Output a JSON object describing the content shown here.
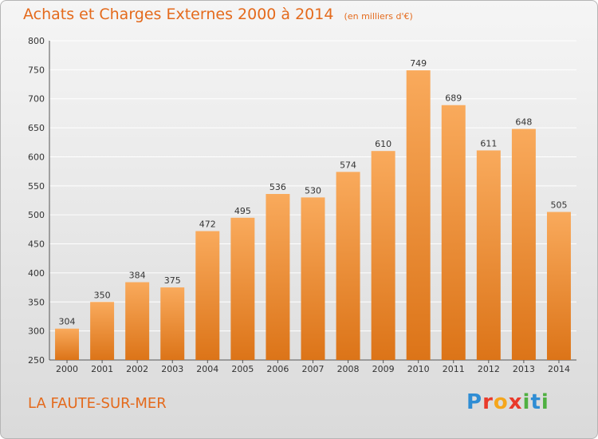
{
  "header": {
    "title": "Achats et Charges Externes 2000 à 2014",
    "unit": "(en milliers d'€)"
  },
  "footer": {
    "commune": "LA FAUTE-SUR-MER",
    "brand": [
      "P",
      "r",
      "o",
      "x",
      "i",
      "t",
      "i"
    ]
  },
  "colors": {
    "accent": "#e46a1c",
    "bar_top": "#f9aa5c",
    "bar_bottom": "#dc7418",
    "grid": "#ffffff"
  },
  "chart_data": {
    "type": "bar",
    "title": "Achats et Charges Externes 2000 à 2014",
    "xlabel": "",
    "ylabel": "",
    "categories": [
      "2000",
      "2001",
      "2002",
      "2003",
      "2004",
      "2005",
      "2006",
      "2007",
      "2008",
      "2009",
      "2010",
      "2011",
      "2012",
      "2013",
      "2014"
    ],
    "values": [
      304,
      350,
      384,
      375,
      472,
      495,
      536,
      530,
      574,
      610,
      749,
      689,
      611,
      648,
      505
    ],
    "ylim": [
      250,
      800
    ],
    "yticks": [
      250,
      300,
      350,
      400,
      450,
      500,
      550,
      600,
      650,
      700,
      750,
      800
    ],
    "grid": true,
    "legend": "none"
  }
}
